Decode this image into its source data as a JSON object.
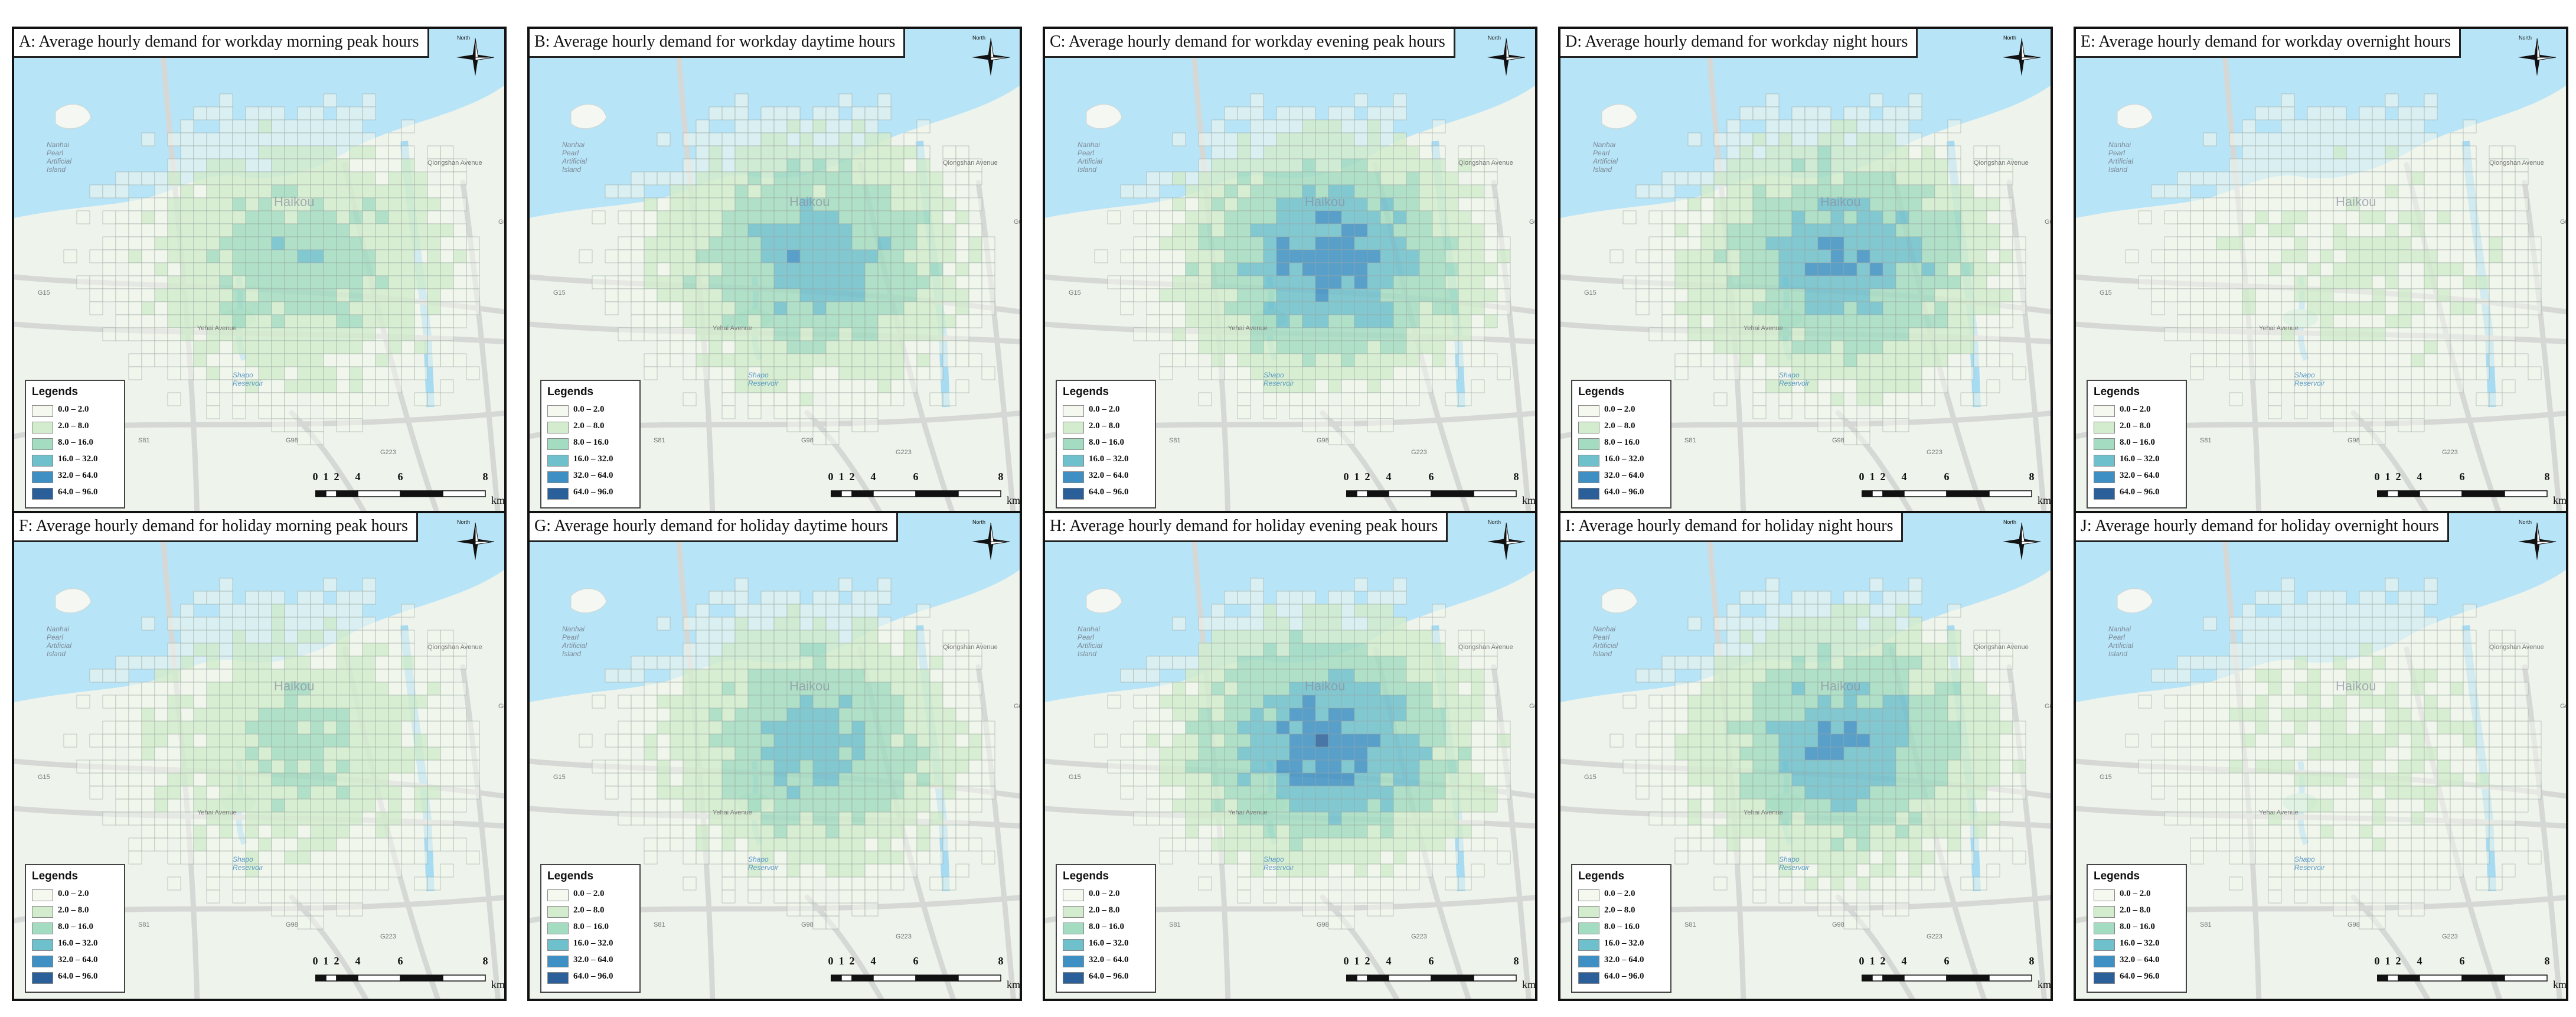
{
  "panels": [
    {
      "title": "A: Average hourly demand for workday morning peak hours",
      "hotspot": 0.9
    },
    {
      "title": "B: Average hourly demand for workday daytime hours",
      "hotspot": 1.2
    },
    {
      "title": "C: Average hourly demand for workday evening peak hours",
      "hotspot": 1.45
    },
    {
      "title": "D: Average hourly demand for workday night hours",
      "hotspot": 1.3
    },
    {
      "title": "E: Average hourly demand for workday overnight hours",
      "hotspot": 0.35
    },
    {
      "title": "F: Average hourly demand for holiday morning peak hours",
      "hotspot": 0.7
    },
    {
      "title": "G: Average hourly demand for holiday daytime hours",
      "hotspot": 1.15
    },
    {
      "title": "H: Average hourly demand for holiday evening peak hours",
      "hotspot": 1.5
    },
    {
      "title": "I: Average hourly demand for holiday night hours",
      "hotspot": 1.3
    },
    {
      "title": "J: Average hourly demand for holiday overnight hours",
      "hotspot": 0.35
    }
  ],
  "legend": {
    "title": "Legends",
    "items": [
      {
        "label": "0.0 – 2.0",
        "color": "#f4f8ee"
      },
      {
        "label": "2.0 – 8.0",
        "color": "#d4ecce"
      },
      {
        "label": "8.0 – 16.0",
        "color": "#a4dcc2"
      },
      {
        "label": "16.0 – 32.0",
        "color": "#6ec0cc"
      },
      {
        "label": "32.0 – 64.0",
        "color": "#3d8fc4"
      },
      {
        "label": "64.0 – 96.0",
        "color": "#2a5f9a"
      }
    ]
  },
  "scalebar": {
    "ticks": [
      "0",
      "1",
      "2",
      "4",
      "6",
      "8"
    ],
    "unit": "km"
  },
  "compass_label": "North",
  "map_labels": {
    "island": [
      "Nanhai",
      "Pearl",
      "Artificial",
      "Island"
    ],
    "city": "Haikou",
    "reservoir": [
      "Shapo",
      "Reservoir"
    ],
    "roads": [
      "Yehai Avenue",
      "Qiongshan Avenue",
      "Guoxing Avenue",
      "G15",
      "S81",
      "G98",
      "G223"
    ]
  },
  "colors": {
    "sea": "#b8e4f7",
    "land": "#eef3ec",
    "road": "#d6d8d6",
    "grid_line": "#9aa8a2",
    "frame": "#111111"
  }
}
